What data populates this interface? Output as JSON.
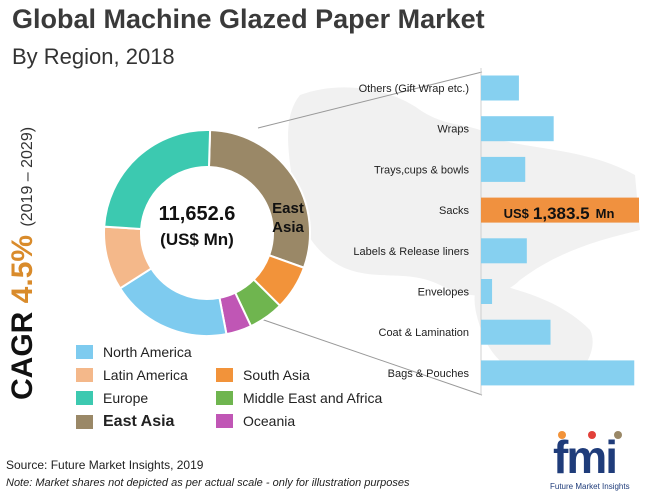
{
  "title": "Global Machine Glazed Paper Market",
  "subtitle": "By Region, 2018",
  "cagr": {
    "label": "CAGR",
    "value": "4.5%",
    "period": "(2019 – 2029)"
  },
  "center": {
    "value": "11,652.6",
    "unit": "(US$ Mn)"
  },
  "highlight_region": {
    "label": "East Asia"
  },
  "highlight_bar": {
    "label": "Sacks",
    "prefix": "US$",
    "value": "1,383.5",
    "suffix": "Mn"
  },
  "source": "Source: Future Market Insights, 2019",
  "note": "Note: Market shares not depicted as per actual scale - only for illustration purposes",
  "logo": {
    "text": "fmi",
    "sub": "Future Market Insights"
  },
  "colors": {
    "north_america": "#7ecbef",
    "latin_america": "#f4b88a",
    "europe": "#3cc9b0",
    "east_asia": "#9a8867",
    "south_asia": "#f2933a",
    "middle_east_africa": "#6fb54f",
    "oceania": "#c056b5",
    "bar": "#86d0f0",
    "highlight": "#f0913f"
  },
  "chart_data": [
    {
      "type": "pie",
      "title": "",
      "slices": [
        {
          "name": "East Asia",
          "value": 30,
          "color": "#9a8867"
        },
        {
          "name": "South Asia",
          "value": 7,
          "color": "#f2933a"
        },
        {
          "name": "Middle East and Africa",
          "value": 5.5,
          "color": "#6fb54f"
        },
        {
          "name": "Oceania",
          "value": 4,
          "color": "#c056b5"
        },
        {
          "name": "North America",
          "value": 19,
          "color": "#7ecbef"
        },
        {
          "name": "Latin America",
          "value": 10,
          "color": "#f4b88a"
        },
        {
          "name": "Europe",
          "value": 24.5,
          "color": "#3cc9b0"
        }
      ],
      "legend": [
        {
          "name": "North America",
          "color": "#7ecbef",
          "bold": false
        },
        {
          "name": "Latin America",
          "color": "#f4b88a",
          "bold": false
        },
        {
          "name": "Europe",
          "color": "#3cc9b0",
          "bold": false
        },
        {
          "name": "East Asia",
          "color": "#9a8867",
          "bold": true
        },
        {
          "name": "South Asia",
          "color": "#f2933a",
          "bold": false
        },
        {
          "name": "Middle East and Africa",
          "color": "#6fb54f",
          "bold": false
        },
        {
          "name": "Oceania",
          "color": "#c056b5",
          "bold": false
        }
      ]
    },
    {
      "type": "bar",
      "orientation": "horizontal",
      "categories": [
        "Others (Gift Wrap etc.)",
        "Wraps",
        "Trays,cups & bowls",
        "Sacks",
        "Labels & Release liners",
        "Envelopes",
        "Coat & Lamination",
        "Bags & Pouches"
      ],
      "values": [
        0.24,
        0.46,
        0.28,
        1.0,
        0.29,
        0.07,
        0.44,
        0.97
      ],
      "highlight": "Sacks"
    }
  ]
}
